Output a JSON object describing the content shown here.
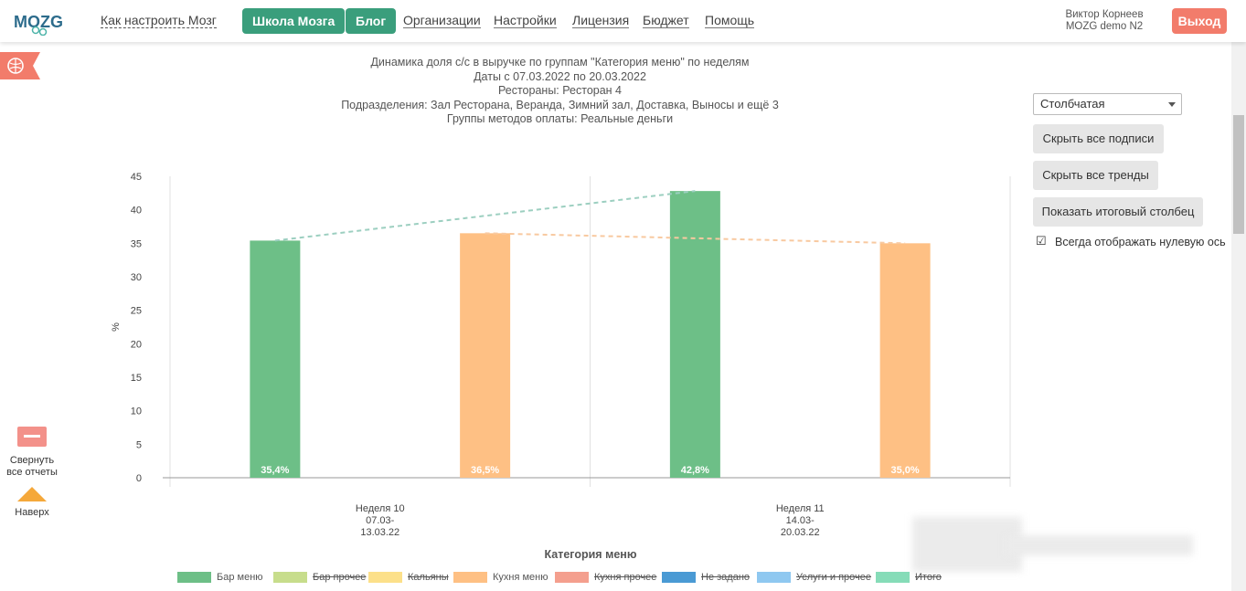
{
  "nav": {
    "logo": "MOZG",
    "how_to": "Как настроить Мозг",
    "school": "Школа Мозга",
    "blog": "Блог",
    "orgs": "Организации",
    "settings": "Настройки",
    "license": "Лицензия",
    "budget": "Бюджет",
    "help": "Помощь",
    "user_name": "Виктор Корнеев",
    "user_org": "MOZG demo N2",
    "logout": "Выход"
  },
  "report": {
    "title_lines": [
      "Динамика доля с/с в выручке по группам \"Категория меню\" по неделям",
      "Даты с 07.03.2022 по 20.03.2022",
      "Рестораны: Ресторан 4",
      "Подразделения: Зал Ресторана, Веранда, Зимний зал, Доставка, Выносы и ещё 3",
      "Группы методов оплаты: Реальные деньги"
    ]
  },
  "controls": {
    "chart_type": "Столбчатая",
    "hide_labels": "Скрыть все подписи",
    "hide_trends": "Скрыть все тренды",
    "show_total": "Показать итоговый столбец",
    "zero_axis_label": "Всегда отображать нулевую ось",
    "zero_axis_checked": true
  },
  "side": {
    "collapse_line1": "Свернуть",
    "collapse_line2": "все отчеты",
    "up": "Наверх"
  },
  "colors": {
    "accent": "#3a9e7c",
    "logout": "#f27c6b",
    "bar_menu": "#6dbf87",
    "kitchen_menu": "#fec084"
  },
  "chart_data": {
    "type": "bar",
    "ylabel": "%",
    "xlabel": "Категория меню",
    "ylim": [
      0,
      45
    ],
    "yticks": [
      0,
      5,
      10,
      15,
      20,
      25,
      30,
      35,
      40,
      45
    ],
    "categories": [
      {
        "lines": [
          "Неделя 10",
          "07.03-",
          "13.03.22"
        ]
      },
      {
        "lines": [
          "Неделя 11",
          "14.03-",
          "20.03.22"
        ]
      }
    ],
    "series": [
      {
        "name": "Бар меню",
        "color": "#6dbf87",
        "values": [
          35.4,
          42.8
        ],
        "labels": [
          "35,4%",
          "42,8%"
        ],
        "trend_color": "#9ccfc0"
      },
      {
        "name": "Кухня меню",
        "color": "#fec084",
        "values": [
          36.5,
          35.0
        ],
        "labels": [
          "36,5%",
          "35,0%"
        ],
        "trend_color": "#f8c9a0"
      }
    ],
    "legend": [
      {
        "name": "Бар меню",
        "color": "#6dbf87",
        "active": true
      },
      {
        "name": "Бар прочее",
        "color": "#c7dd8c",
        "active": false
      },
      {
        "name": "Кальяны",
        "color": "#fce08a",
        "active": false
      },
      {
        "name": "Кухня меню",
        "color": "#fec084",
        "active": true
      },
      {
        "name": "Кухня прочее",
        "color": "#f49f8e",
        "active": false
      },
      {
        "name": "Не задано",
        "color": "#4a9ad4",
        "active": false
      },
      {
        "name": "Услуги и прочее",
        "color": "#8fc8f0",
        "active": false
      },
      {
        "name": "Итого",
        "color": "#86dcb8",
        "active": false
      }
    ]
  }
}
